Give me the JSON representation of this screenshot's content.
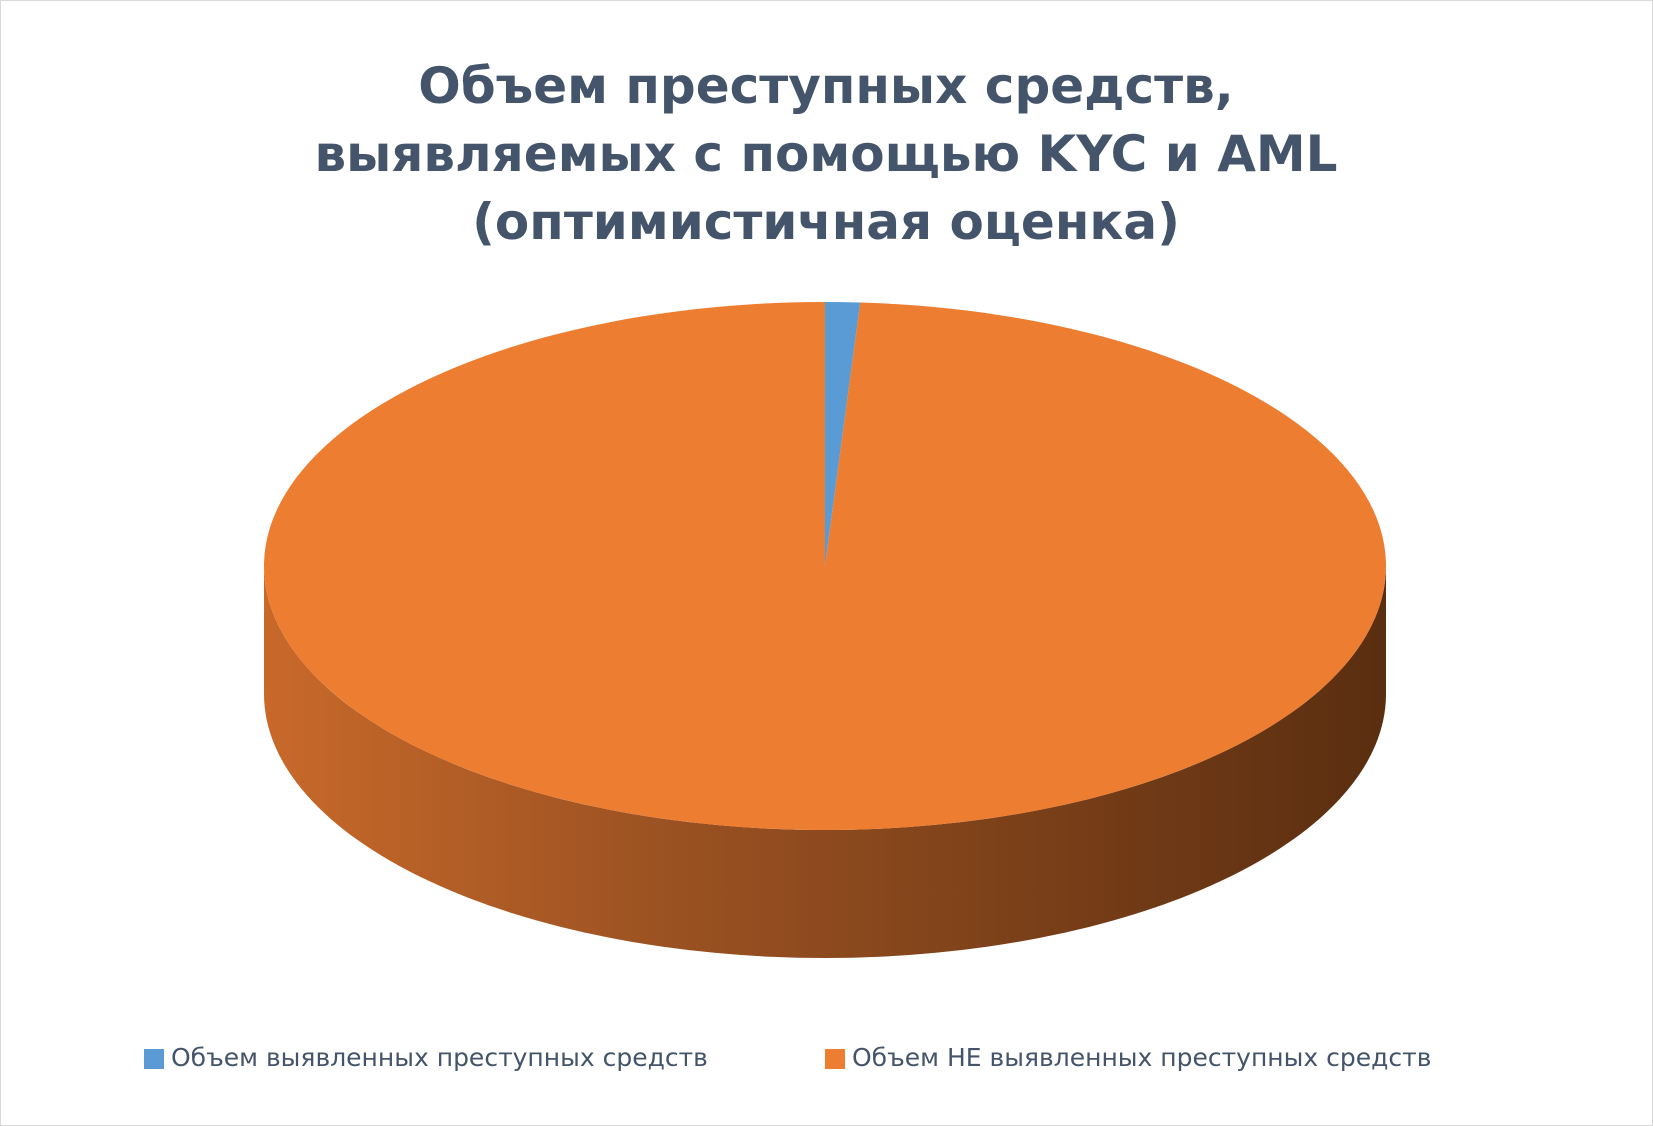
{
  "chart_data": {
    "type": "pie",
    "title": "Объем преступных средств, выявляемых с помощью KYC и AML (оптимистичная оценка)",
    "categories": [
      "Объем выявленных преступных средств",
      "Объем НЕ выявленных преступных средств"
    ],
    "values": [
      1,
      99
    ],
    "colors": [
      "#5b9bd5",
      "#ed7d31"
    ],
    "legend": "bottom",
    "three_d": true
  }
}
